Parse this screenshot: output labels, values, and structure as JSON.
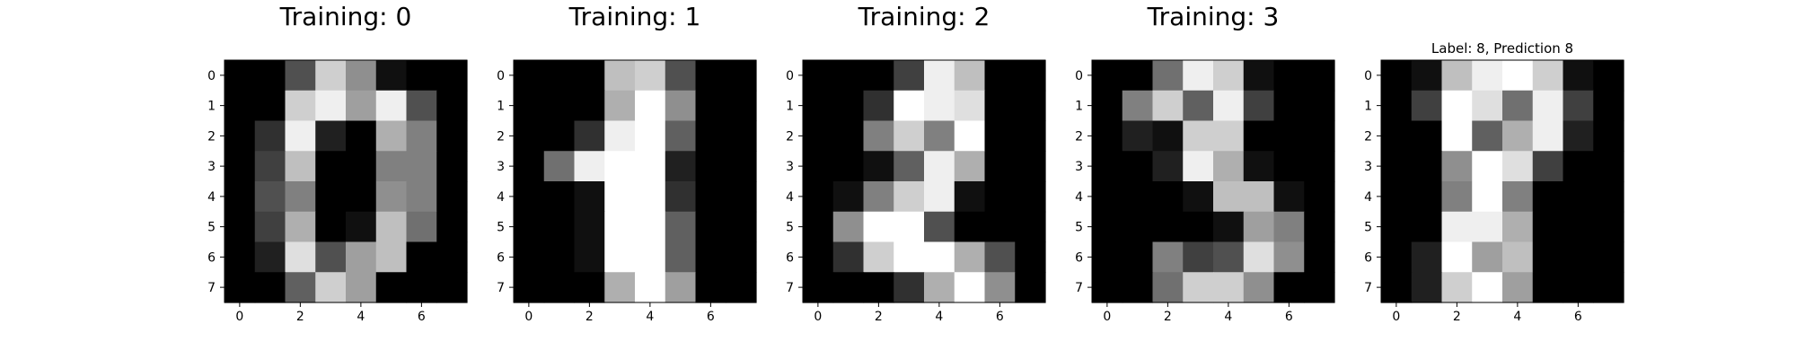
{
  "chart_data": [
    {
      "type": "heatmap",
      "title": "Training: 0",
      "colormap": "gray",
      "value_range": [
        0,
        16
      ],
      "xlim": [
        -0.5,
        7.5
      ],
      "ylim": [
        7.5,
        -0.5
      ],
      "xticks": [
        0,
        2,
        4,
        6
      ],
      "yticks": [
        0,
        1,
        2,
        3,
        4,
        5,
        6,
        7
      ],
      "grid": false,
      "values": [
        [
          0,
          0,
          5,
          13,
          9,
          1,
          0,
          0
        ],
        [
          0,
          0,
          13,
          15,
          10,
          15,
          5,
          0
        ],
        [
          0,
          3,
          15,
          2,
          0,
          11,
          8,
          0
        ],
        [
          0,
          4,
          12,
          0,
          0,
          8,
          8,
          0
        ],
        [
          0,
          5,
          8,
          0,
          0,
          9,
          8,
          0
        ],
        [
          0,
          4,
          11,
          0,
          1,
          12,
          7,
          0
        ],
        [
          0,
          2,
          14,
          5,
          10,
          12,
          0,
          0
        ],
        [
          0,
          0,
          6,
          13,
          10,
          0,
          0,
          0
        ]
      ]
    },
    {
      "type": "heatmap",
      "title": "Training: 1",
      "colormap": "gray",
      "value_range": [
        0,
        16
      ],
      "xlim": [
        -0.5,
        7.5
      ],
      "ylim": [
        7.5,
        -0.5
      ],
      "xticks": [
        0,
        2,
        4,
        6
      ],
      "yticks": [
        0,
        1,
        2,
        3,
        4,
        5,
        6,
        7
      ],
      "grid": false,
      "values": [
        [
          0,
          0,
          0,
          12,
          13,
          5,
          0,
          0
        ],
        [
          0,
          0,
          0,
          11,
          16,
          9,
          0,
          0
        ],
        [
          0,
          0,
          3,
          15,
          16,
          6,
          0,
          0
        ],
        [
          0,
          7,
          15,
          16,
          16,
          2,
          0,
          0
        ],
        [
          0,
          0,
          1,
          16,
          16,
          3,
          0,
          0
        ],
        [
          0,
          0,
          1,
          16,
          16,
          6,
          0,
          0
        ],
        [
          0,
          0,
          1,
          16,
          16,
          6,
          0,
          0
        ],
        [
          0,
          0,
          0,
          11,
          16,
          10,
          0,
          0
        ]
      ]
    },
    {
      "type": "heatmap",
      "title": "Training: 2",
      "colormap": "gray",
      "value_range": [
        0,
        16
      ],
      "xlim": [
        -0.5,
        7.5
      ],
      "ylim": [
        7.5,
        -0.5
      ],
      "xticks": [
        0,
        2,
        4,
        6
      ],
      "yticks": [
        0,
        1,
        2,
        3,
        4,
        5,
        6,
        7
      ],
      "grid": false,
      "values": [
        [
          0,
          0,
          0,
          4,
          15,
          12,
          0,
          0
        ],
        [
          0,
          0,
          3,
          16,
          15,
          14,
          0,
          0
        ],
        [
          0,
          0,
          8,
          13,
          8,
          16,
          0,
          0
        ],
        [
          0,
          0,
          1,
          6,
          15,
          11,
          0,
          0
        ],
        [
          0,
          1,
          8,
          13,
          15,
          1,
          0,
          0
        ],
        [
          0,
          9,
          16,
          16,
          5,
          0,
          0,
          0
        ],
        [
          0,
          3,
          13,
          16,
          16,
          11,
          5,
          0
        ],
        [
          0,
          0,
          0,
          3,
          11,
          16,
          9,
          0
        ]
      ]
    },
    {
      "type": "heatmap",
      "title": "Training: 3",
      "colormap": "gray",
      "value_range": [
        0,
        16
      ],
      "xlim": [
        -0.5,
        7.5
      ],
      "ylim": [
        7.5,
        -0.5
      ],
      "xticks": [
        0,
        2,
        4,
        6
      ],
      "yticks": [
        0,
        1,
        2,
        3,
        4,
        5,
        6,
        7
      ],
      "grid": false,
      "values": [
        [
          0,
          0,
          7,
          15,
          13,
          1,
          0,
          0
        ],
        [
          0,
          8,
          13,
          6,
          15,
          4,
          0,
          0
        ],
        [
          0,
          2,
          1,
          13,
          13,
          0,
          0,
          0
        ],
        [
          0,
          0,
          2,
          15,
          11,
          1,
          0,
          0
        ],
        [
          0,
          0,
          0,
          1,
          12,
          12,
          1,
          0
        ],
        [
          0,
          0,
          0,
          0,
          1,
          10,
          8,
          0
        ],
        [
          0,
          0,
          8,
          4,
          5,
          14,
          9,
          0
        ],
        [
          0,
          0,
          7,
          13,
          13,
          9,
          0,
          0
        ]
      ]
    },
    {
      "type": "heatmap",
      "title": "Label: 8, Prediction 8",
      "colormap": "gray",
      "value_range": [
        0,
        16
      ],
      "xlim": [
        -0.5,
        7.5
      ],
      "ylim": [
        7.5,
        -0.5
      ],
      "xticks": [
        0,
        2,
        4,
        6
      ],
      "yticks": [
        0,
        1,
        2,
        3,
        4,
        5,
        6,
        7
      ],
      "grid": false,
      "values": [
        [
          0,
          1,
          12,
          15,
          16,
          13,
          1,
          0
        ],
        [
          0,
          4,
          16,
          14,
          7,
          15,
          4,
          0
        ],
        [
          0,
          0,
          16,
          6,
          11,
          15,
          2,
          0
        ],
        [
          0,
          0,
          9,
          16,
          14,
          4,
          0,
          0
        ],
        [
          0,
          0,
          8,
          16,
          8,
          0,
          0,
          0
        ],
        [
          0,
          0,
          15,
          15,
          11,
          0,
          0,
          0
        ],
        [
          0,
          2,
          16,
          10,
          12,
          0,
          0,
          0
        ],
        [
          0,
          2,
          13,
          16,
          10,
          0,
          0,
          0
        ]
      ]
    }
  ]
}
